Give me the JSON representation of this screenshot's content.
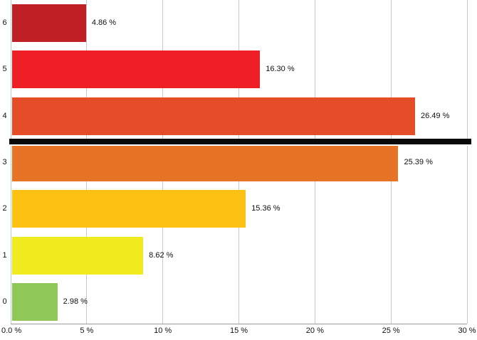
{
  "chart_data": {
    "type": "bar",
    "orientation": "horizontal",
    "title": "",
    "xlabel": "",
    "ylabel": "",
    "categories": [
      "6",
      "5",
      "4",
      "3",
      "2",
      "1",
      "0"
    ],
    "values": [
      4.86,
      16.3,
      26.49,
      25.39,
      15.36,
      8.62,
      2.98
    ],
    "value_labels": [
      "4.86 %",
      "16.30 %",
      "26.49 %",
      "25.39 %",
      "15.36 %",
      "8.62 %",
      "2.98 %"
    ],
    "bar_colors": [
      "#be2026",
      "#ee1f25",
      "#e44d27",
      "#e77426",
      "#fdc113",
      "#f0eb1f",
      "#8fc858"
    ],
    "xlim": [
      0,
      30
    ],
    "x_ticks": [
      0,
      5,
      10,
      15,
      20,
      25,
      30
    ],
    "x_tick_labels": [
      "0.0 %",
      "5 %",
      "10 %",
      "15 %",
      "20 %",
      "25 %",
      "30 %"
    ],
    "grid": "vertical",
    "legend": "none",
    "separator_line": {
      "after_category": "4",
      "before_category": "3",
      "color": "#0a0a0a"
    },
    "colors": {
      "gridline": "#c9c9c9",
      "zero_axis": "#b9cfd8",
      "baseline": "#9b9b9b",
      "text": "#111111",
      "background": "#ffffff"
    }
  }
}
